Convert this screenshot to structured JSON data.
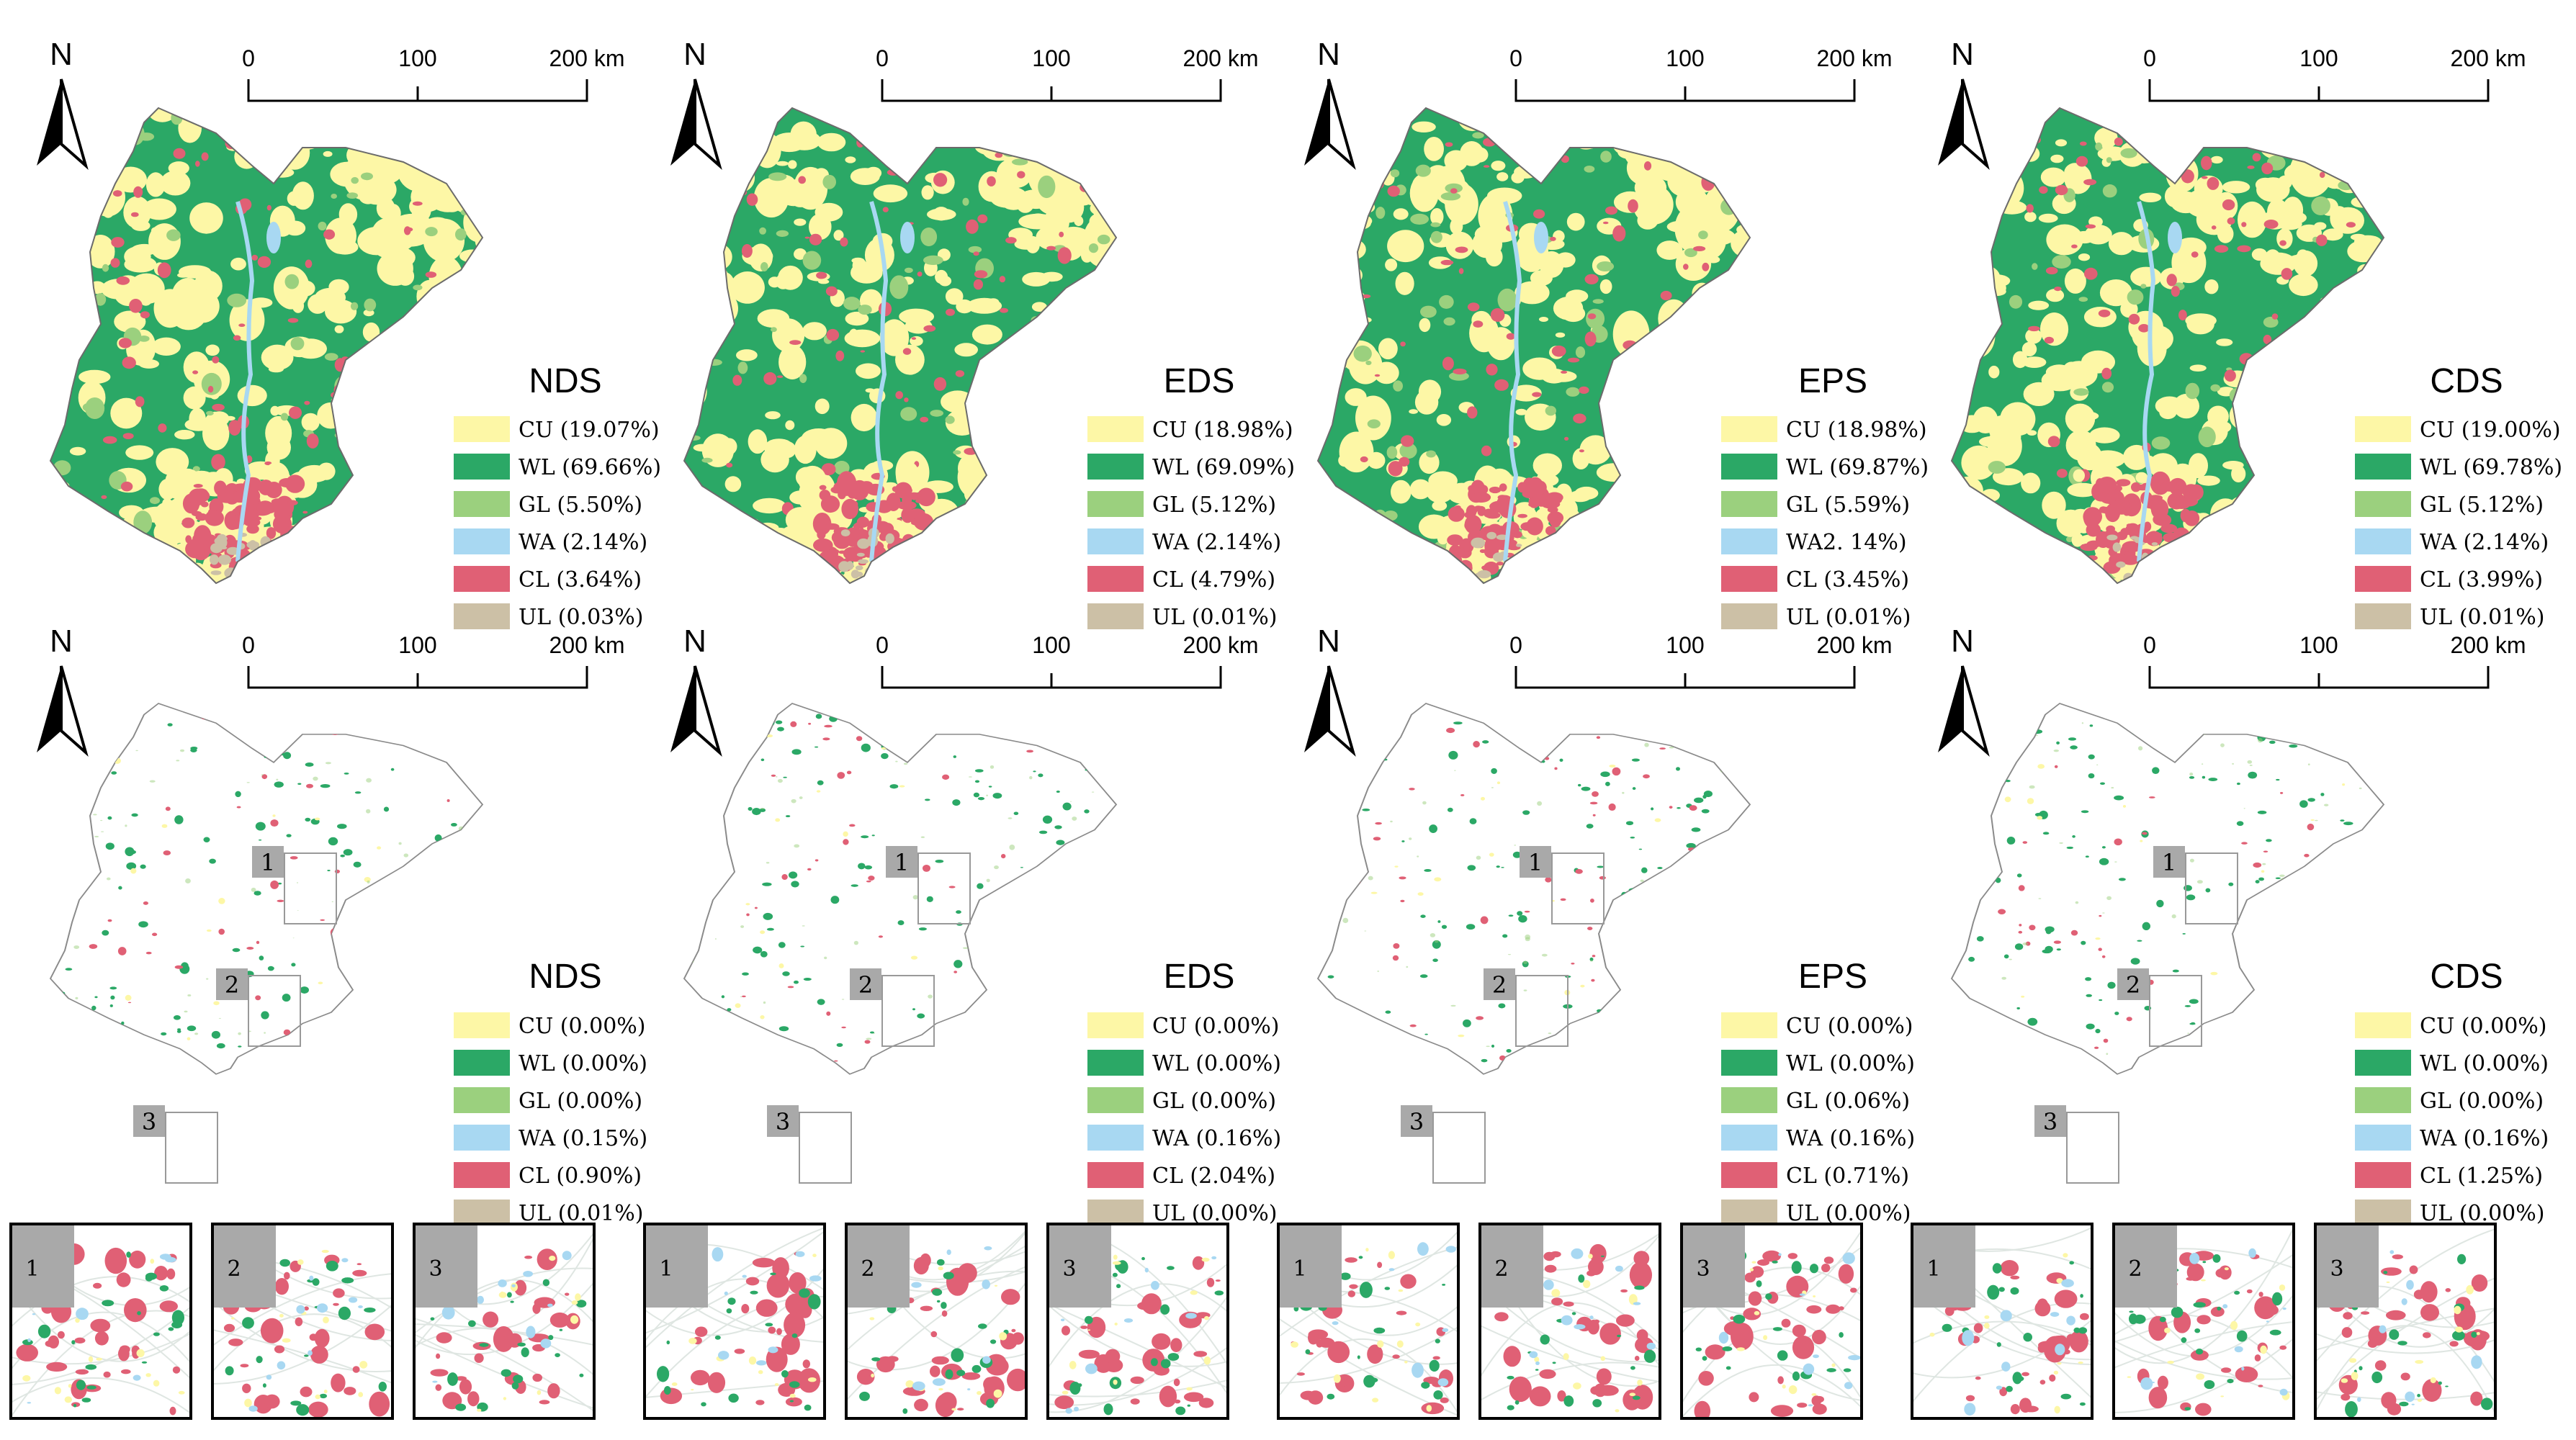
{
  "north_label": "N",
  "scale": {
    "ticks": [
      "0",
      "100",
      "200 km"
    ]
  },
  "legend_codes": [
    "CU",
    "WL",
    "GL",
    "WA",
    "CL",
    "UL"
  ],
  "class_colors": {
    "CU": "#fdf7a6",
    "WL": "#2ba866",
    "GL": "#9bd07e",
    "WA": "#a8d8f2",
    "CL": "#e06075",
    "UL": "#ccc0a6"
  },
  "scenarios": [
    {
      "name": "NDS",
      "land_use": [
        "CU (19.07%)",
        "WL (69.66%)",
        "GL (5.50%)",
        "WA (2.14%)",
        "CL (3.64%)",
        "UL (0.03%)"
      ],
      "change": [
        "CU (0.00%)",
        "WL (0.00%)",
        "GL (0.00%)",
        "WA (0.15%)",
        "CL (0.90%)",
        "UL (0.01%)"
      ]
    },
    {
      "name": "EDS",
      "land_use": [
        "CU (18.98%)",
        "WL (69.09%)",
        "GL (5.12%)",
        "WA (2.14%)",
        "CL (4.79%)",
        "UL (0.01%)"
      ],
      "change": [
        "CU (0.00%)",
        "WL (0.00%)",
        "GL (0.00%)",
        "WA (0.16%)",
        "CL (2.04%)",
        "UL (0.00%)"
      ]
    },
    {
      "name": "EPS",
      "land_use": [
        "CU (18.98%)",
        "WL (69.87%)",
        "GL (5.59%)",
        "WA2. 14%)",
        "CL (3.45%)",
        "UL (0.01%)"
      ],
      "change": [
        "CU (0.00%)",
        "WL (0.00%)",
        "GL (0.06%)",
        "WA (0.16%)",
        "CL (0.71%)",
        "UL (0.00%)"
      ]
    },
    {
      "name": "CDS",
      "land_use": [
        "CU (19.00%)",
        "WL (69.78%)",
        "GL (5.12%)",
        "WA (2.14%)",
        "CL (3.99%)",
        "UL (0.01%)"
      ],
      "change": [
        "CU (0.00%)",
        "WL (0.00%)",
        "GL (0.00%)",
        "WA (0.16%)",
        "CL (1.25%)",
        "UL (0.00%)"
      ]
    }
  ],
  "zoom_labels": [
    "1",
    "2",
    "3"
  ]
}
